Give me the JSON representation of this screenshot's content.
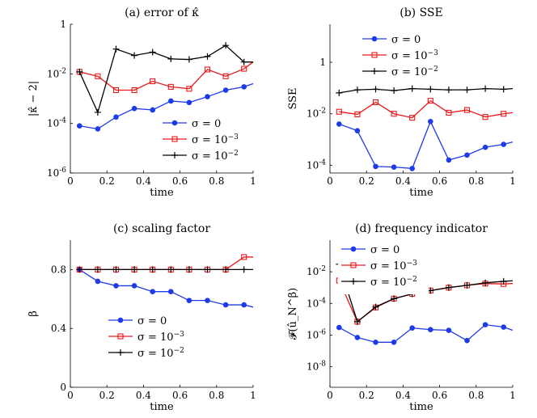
{
  "colors": {
    "blue": "#1f3be8",
    "red": "#e8191b",
    "black": "#000000"
  },
  "chart_data": [
    {
      "type": "line",
      "title": "(a) error of κ̂",
      "xlabel": "time",
      "ylabel": "|κ̂ − 2|",
      "yscale": "log",
      "xlim": [
        0,
        1
      ],
      "ylim": [
        1e-06,
        1
      ],
      "xticks": [
        "0",
        "0.2",
        "0.4",
        "0.6",
        "0.8",
        "1"
      ],
      "yticks": [
        {
          "v": 1e-06,
          "base": "10",
          "exp": "-6"
        },
        {
          "v": 0.0001,
          "base": "10",
          "exp": "-4"
        },
        {
          "v": 0.01,
          "base": "10",
          "exp": "-2"
        },
        {
          "v": 1,
          "base": "1",
          "exp": ""
        }
      ],
      "x": [
        0.05,
        0.15,
        0.25,
        0.35,
        0.45,
        0.55,
        0.65,
        0.75,
        0.85,
        0.95,
        1.0
      ],
      "series": [
        {
          "name": "σ = 0",
          "legend_base": "σ = 0",
          "legend_exp": "",
          "color": "blue",
          "marker": "dot",
          "values": [
            8e-05,
            6e-05,
            0.00018,
            0.0004,
            0.00035,
            0.0008,
            0.0007,
            0.0012,
            0.0022,
            0.003,
            0.004
          ]
        },
        {
          "name": "σ = 10^-3",
          "legend_base": "σ = 10",
          "legend_exp": "−3",
          "color": "red",
          "marker": "square",
          "values": [
            0.012,
            0.008,
            0.0022,
            0.0022,
            0.005,
            0.003,
            0.0025,
            0.015,
            0.008,
            0.016,
            0.03
          ]
        },
        {
          "name": "σ = 10^-2",
          "legend_base": "σ = 10",
          "legend_exp": "−2",
          "color": "black",
          "marker": "plus",
          "values": [
            0.012,
            0.00028,
            0.1,
            0.055,
            0.075,
            0.04,
            0.038,
            0.05,
            0.14,
            0.03,
            0.03
          ]
        }
      ],
      "legend": "bottom-right"
    },
    {
      "type": "line",
      "title": "(b) SSE",
      "xlabel": "time",
      "ylabel": "SSE",
      "yscale": "log",
      "xlim": [
        0,
        1
      ],
      "ylim": [
        5e-05,
        30
      ],
      "xticks": [
        "0",
        "0.2",
        "0.4",
        "0.6",
        "0.8",
        "1"
      ],
      "yticks": [
        {
          "v": 0.0001,
          "base": "10",
          "exp": "-4"
        },
        {
          "v": 0.01,
          "base": "10",
          "exp": "-2"
        },
        {
          "v": 1,
          "base": "1",
          "exp": ""
        }
      ],
      "x": [
        0.05,
        0.15,
        0.25,
        0.35,
        0.45,
        0.55,
        0.65,
        0.75,
        0.85,
        0.95,
        1.0
      ],
      "series": [
        {
          "name": "σ = 0",
          "legend_base": "σ = 0",
          "legend_exp": "",
          "color": "blue",
          "marker": "dot",
          "values": [
            0.004,
            0.0022,
            9e-05,
            8.5e-05,
            7.5e-05,
            0.005,
            0.00016,
            0.00025,
            0.0005,
            0.00065,
            0.0008
          ]
        },
        {
          "name": "σ = 10^-3",
          "legend_base": "σ = 10",
          "legend_exp": "−3",
          "color": "red",
          "marker": "square",
          "values": [
            0.012,
            0.0095,
            0.028,
            0.01,
            0.007,
            0.032,
            0.011,
            0.014,
            0.0075,
            0.01,
            0.011
          ]
        },
        {
          "name": "σ = 10^-2",
          "legend_base": "σ = 10",
          "legend_exp": "−2",
          "color": "black",
          "marker": "plus",
          "values": [
            0.065,
            0.085,
            0.09,
            0.08,
            0.095,
            0.09,
            0.085,
            0.085,
            0.095,
            0.09,
            0.095
          ]
        }
      ],
      "legend": "top-right"
    },
    {
      "type": "line",
      "title": "(c) scaling factor",
      "xlabel": "time",
      "ylabel": "β",
      "yscale": "linear",
      "xlim": [
        0,
        1
      ],
      "ylim": [
        0,
        1
      ],
      "xticks": [
        "0",
        "0.2",
        "0.4",
        "0.6",
        "0.8",
        "1"
      ],
      "yticks": [
        {
          "v": 0,
          "base": "0",
          "exp": ""
        },
        {
          "v": 0.4,
          "base": "0.4",
          "exp": ""
        },
        {
          "v": 0.8,
          "base": "0.8",
          "exp": ""
        }
      ],
      "x": [
        0.05,
        0.15,
        0.25,
        0.35,
        0.45,
        0.55,
        0.65,
        0.75,
        0.85,
        0.95,
        1.0
      ],
      "series": [
        {
          "name": "σ = 0",
          "legend_base": "σ = 0",
          "legend_exp": "",
          "color": "blue",
          "marker": "dot",
          "values": [
            0.8,
            0.72,
            0.69,
            0.69,
            0.65,
            0.65,
            0.59,
            0.59,
            0.56,
            0.56,
            0.545
          ]
        },
        {
          "name": "σ = 10^-3",
          "legend_base": "σ = 10",
          "legend_exp": "−3",
          "color": "red",
          "marker": "square",
          "values": [
            0.8,
            0.8,
            0.8,
            0.8,
            0.8,
            0.8,
            0.8,
            0.8,
            0.8,
            0.885,
            0.885
          ]
        },
        {
          "name": "σ = 10^-2",
          "legend_base": "σ = 10",
          "legend_exp": "−2",
          "color": "black",
          "marker": "plus",
          "values": [
            0.8,
            0.8,
            0.8,
            0.8,
            0.8,
            0.8,
            0.8,
            0.8,
            0.8,
            0.8,
            0.8
          ]
        }
      ],
      "legend": "bottom-center"
    },
    {
      "type": "line",
      "title": "(d) frequency indicator",
      "xlabel": "time",
      "ylabel": "𝓕(û_N^β)",
      "yscale": "log",
      "xlim": [
        0,
        1
      ],
      "ylim": [
        5e-10,
        1
      ],
      "xticks": [
        "0",
        "0.2",
        "0.4",
        "0.6",
        "0.8",
        "1"
      ],
      "yticks": [
        {
          "v": 1e-08,
          "base": "10",
          "exp": "-8"
        },
        {
          "v": 1e-06,
          "base": "10",
          "exp": "-6"
        },
        {
          "v": 0.0001,
          "base": "10",
          "exp": "-4"
        },
        {
          "v": 0.01,
          "base": "10",
          "exp": "-2"
        }
      ],
      "x": [
        0.05,
        0.15,
        0.25,
        0.35,
        0.45,
        0.55,
        0.65,
        0.75,
        0.85,
        0.95,
        1.0
      ],
      "series": [
        {
          "name": "σ = 0",
          "legend_base": "σ = 0",
          "legend_exp": "",
          "color": "blue",
          "marker": "dot",
          "values": [
            3e-06,
            7e-07,
            3.5e-07,
            3.5e-07,
            2.8e-06,
            2.2e-06,
            2e-06,
            4.5e-07,
            4.5e-06,
            3.2e-06,
            2e-06
          ]
        },
        {
          "name": "σ = 10^-3",
          "legend_base": "σ = 10",
          "legend_exp": "−3",
          "color": "red",
          "marker": "square",
          "values": [
            0.0028,
            7e-06,
            5.5e-05,
            0.0002,
            0.0004,
            0.00065,
            0.001,
            0.0014,
            0.0018,
            0.0017,
            0.0018
          ]
        },
        {
          "name": "σ = 10^-2",
          "legend_base": "σ = 10",
          "legend_exp": "−2",
          "color": "black",
          "marker": "plus",
          "values": [
            0.03,
            7e-06,
            6e-05,
            0.0002,
            0.0004,
            0.00065,
            0.001,
            0.0014,
            0.002,
            0.0025,
            0.0027
          ]
        }
      ],
      "legend": "top-right"
    }
  ]
}
